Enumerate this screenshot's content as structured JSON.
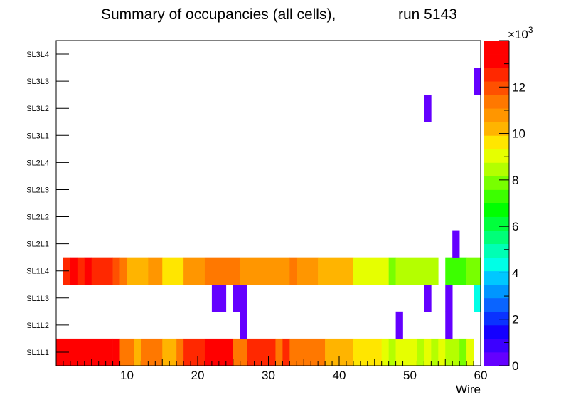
{
  "chart_data": {
    "type": "heatmap",
    "title_main": "Summary of occupancies (all cells),",
    "title_run": "run 5143",
    "xlabel": "Wire",
    "xlim": [
      0,
      60
    ],
    "x_ticks": [
      10,
      20,
      30,
      40,
      50,
      60
    ],
    "y_categories": [
      "SL1L1",
      "SL1L2",
      "SL1L3",
      "SL1L4",
      "SL2L1",
      "SL2L2",
      "SL2L3",
      "SL2L4",
      "SL3L1",
      "SL3L2",
      "SL3L3",
      "SL3L4"
    ],
    "z_range": [
      0,
      14000
    ],
    "z_exponent_label": "×10",
    "z_exponent_power": "3",
    "z_ticks": [
      0,
      2,
      4,
      6,
      8,
      10,
      12
    ],
    "palette": [
      "#6400ff",
      "#3c00ff",
      "#1400ff",
      "#0a32ff",
      "#0a64ff",
      "#0096ff",
      "#00c8ff",
      "#00ffe6",
      "#00ffb4",
      "#00ff78",
      "#00ff3c",
      "#00ff00",
      "#3cff00",
      "#78ff00",
      "#b4ff00",
      "#e6ff00",
      "#ffe600",
      "#ffb400",
      "#ff9600",
      "#ff7800",
      "#ff5000",
      "#ff2800",
      "#ff0000",
      "#ff0000"
    ],
    "rows": [
      {
        "layer": "SL1L1",
        "segments": [
          {
            "from": 0,
            "to": 8,
            "value": 13700
          },
          {
            "from": 8,
            "to": 9,
            "value": 13000
          },
          {
            "from": 9,
            "to": 11,
            "value": 11600
          },
          {
            "from": 11,
            "to": 12,
            "value": 10200
          },
          {
            "from": 12,
            "to": 15,
            "value": 11600
          },
          {
            "from": 15,
            "to": 17,
            "value": 10200
          },
          {
            "from": 17,
            "to": 18,
            "value": 11600
          },
          {
            "from": 18,
            "to": 21,
            "value": 12300
          },
          {
            "from": 21,
            "to": 25,
            "value": 13400
          },
          {
            "from": 25,
            "to": 27,
            "value": 11600
          },
          {
            "from": 27,
            "to": 31,
            "value": 12300
          },
          {
            "from": 31,
            "to": 32,
            "value": 11600
          },
          {
            "from": 32,
            "to": 33,
            "value": 12300
          },
          {
            "from": 33,
            "to": 38,
            "value": 11600
          },
          {
            "from": 38,
            "to": 42,
            "value": 10200
          },
          {
            "from": 42,
            "to": 46,
            "value": 9600
          },
          {
            "from": 46,
            "to": 47,
            "value": 8900
          },
          {
            "from": 47,
            "to": 48,
            "value": 8300
          },
          {
            "from": 48,
            "to": 51,
            "value": 8900
          },
          {
            "from": 51,
            "to": 52,
            "value": 8300
          },
          {
            "from": 52,
            "to": 53,
            "value": 8900
          },
          {
            "from": 53,
            "to": 54,
            "value": 8300
          },
          {
            "from": 54,
            "to": 55,
            "value": 8900
          },
          {
            "from": 55,
            "to": 57,
            "value": 8300
          },
          {
            "from": 57,
            "to": 58,
            "value": 7700
          },
          {
            "from": 58,
            "to": 59,
            "value": 8900
          }
        ]
      },
      {
        "layer": "SL1L2",
        "segments": [
          {
            "from": 26,
            "to": 27,
            "value": 300
          },
          {
            "from": 48,
            "to": 49,
            "value": 300
          },
          {
            "from": 55,
            "to": 56,
            "value": 300
          }
        ]
      },
      {
        "layer": "SL1L3",
        "segments": [
          {
            "from": 22,
            "to": 24,
            "value": 300
          },
          {
            "from": 25,
            "to": 27,
            "value": 300
          },
          {
            "from": 52,
            "to": 53,
            "value": 300
          },
          {
            "from": 55,
            "to": 56,
            "value": 300
          },
          {
            "from": 59,
            "to": 60,
            "value": 4500
          }
        ]
      },
      {
        "layer": "SL1L4",
        "segments": [
          {
            "from": 1,
            "to": 2,
            "value": 12500
          },
          {
            "from": 2,
            "to": 3,
            "value": 13300
          },
          {
            "from": 3,
            "to": 4,
            "value": 12500
          },
          {
            "from": 4,
            "to": 5,
            "value": 13300
          },
          {
            "from": 5,
            "to": 8,
            "value": 12800
          },
          {
            "from": 8,
            "to": 9,
            "value": 11800
          },
          {
            "from": 9,
            "to": 10,
            "value": 11200
          },
          {
            "from": 10,
            "to": 13,
            "value": 10000
          },
          {
            "from": 13,
            "to": 15,
            "value": 10600
          },
          {
            "from": 15,
            "to": 18,
            "value": 9900
          },
          {
            "from": 18,
            "to": 21,
            "value": 10600
          },
          {
            "from": 21,
            "to": 26,
            "value": 11600
          },
          {
            "from": 26,
            "to": 33,
            "value": 10900
          },
          {
            "from": 33,
            "to": 34,
            "value": 11600
          },
          {
            "from": 34,
            "to": 37,
            "value": 10900
          },
          {
            "from": 37,
            "to": 42,
            "value": 10200
          },
          {
            "from": 42,
            "to": 47,
            "value": 8900
          },
          {
            "from": 47,
            "to": 48,
            "value": 7700
          },
          {
            "from": 48,
            "to": 54,
            "value": 8300
          },
          {
            "from": 55,
            "to": 58,
            "value": 7300
          },
          {
            "from": 58,
            "to": 60,
            "value": 7700
          }
        ]
      },
      {
        "layer": "SL2L1",
        "segments": [
          {
            "from": 56,
            "to": 57,
            "value": 300
          }
        ]
      },
      {
        "layer": "SL2L2",
        "segments": []
      },
      {
        "layer": "SL2L3",
        "segments": []
      },
      {
        "layer": "SL2L4",
        "segments": []
      },
      {
        "layer": "SL3L1",
        "segments": []
      },
      {
        "layer": "SL3L2",
        "segments": [
          {
            "from": 52,
            "to": 53,
            "value": 300
          }
        ]
      },
      {
        "layer": "SL3L3",
        "segments": [
          {
            "from": 59,
            "to": 60,
            "value": 300
          }
        ]
      },
      {
        "layer": "SL3L4",
        "segments": []
      }
    ]
  }
}
